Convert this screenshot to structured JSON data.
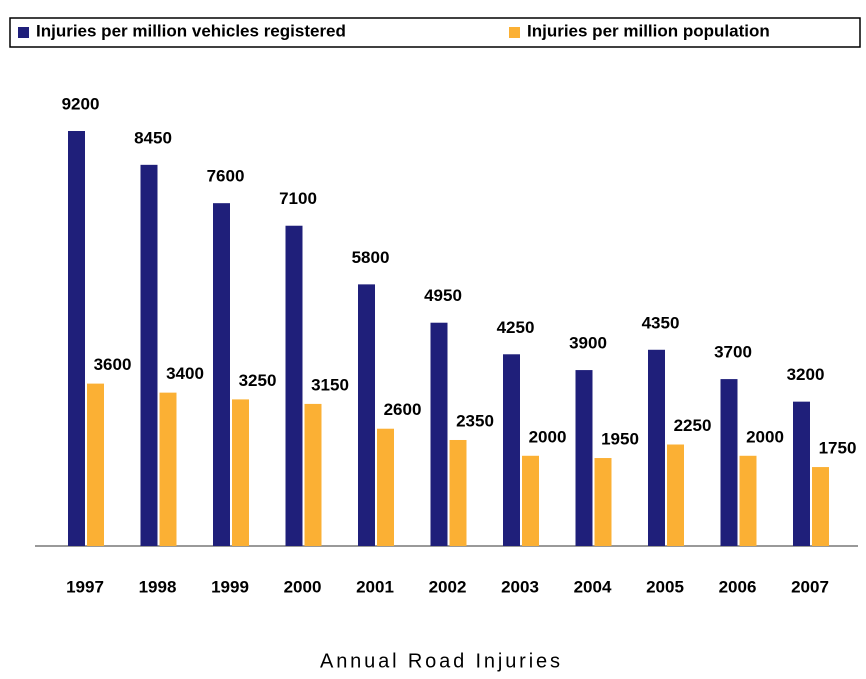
{
  "chart_data": {
    "type": "bar",
    "xlabel": "Annual Road Injuries",
    "categories": [
      "1997",
      "1998",
      "1999",
      "2000",
      "2001",
      "2002",
      "2003",
      "2004",
      "2005",
      "2006",
      "2007"
    ],
    "series": [
      {
        "name": "Injuries per million vehicles registered",
        "color": "#1f1f7a",
        "values": [
          9200,
          8450,
          7600,
          7100,
          5800,
          4950,
          4250,
          3900,
          4350,
          3700,
          3200
        ]
      },
      {
        "name": "Injuries per million population",
        "color": "#fbb034",
        "values": [
          3600,
          3400,
          3250,
          3150,
          2600,
          2350,
          2000,
          1950,
          2250,
          2000,
          1750
        ]
      }
    ]
  }
}
